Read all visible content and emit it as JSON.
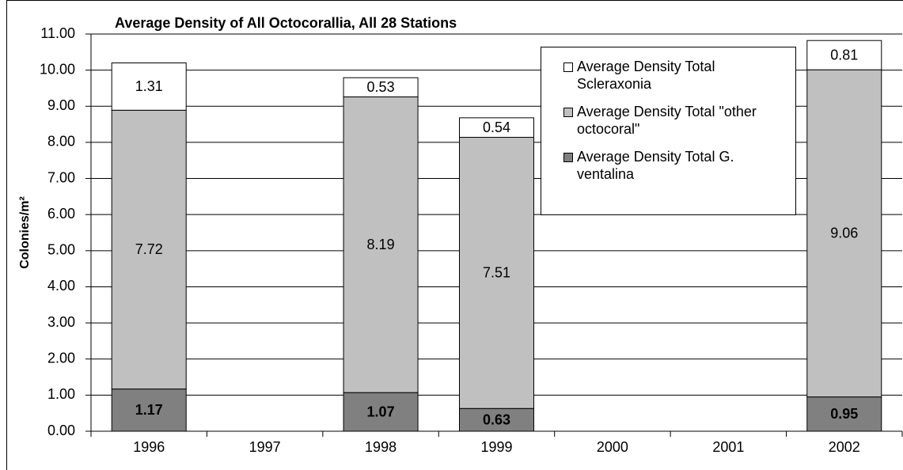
{
  "chart_data": {
    "type": "stacked_bar",
    "title": "Average Density of All Octocorallia, All 28 Stations",
    "y_label": "Colonies/m²",
    "categories": [
      "1996",
      "1997",
      "1998",
      "1999",
      "2000",
      "2001",
      "2002"
    ],
    "series": [
      {
        "name": "Average Density Total G. ventalina",
        "color": "#808080",
        "values": [
          1.17,
          null,
          1.07,
          0.63,
          null,
          null,
          0.95
        ]
      },
      {
        "name": "Average Density Total \"other octocoral\"",
        "color": "#c0c0c0",
        "values": [
          7.72,
          null,
          8.19,
          7.51,
          null,
          null,
          9.06
        ]
      },
      {
        "name": "Average Density Total Scleraxonia",
        "color": "#ffffff",
        "values": [
          1.31,
          null,
          0.53,
          0.54,
          null,
          null,
          0.81
        ]
      }
    ],
    "ylim": [
      0,
      11
    ],
    "yticks": [
      {
        "value": 0,
        "label": "0.00"
      },
      {
        "value": 1,
        "label": "1.00"
      },
      {
        "value": 2,
        "label": "2.00"
      },
      {
        "value": 3,
        "label": "3.00"
      },
      {
        "value": 4,
        "label": "4.00"
      },
      {
        "value": 5,
        "label": "5.00"
      },
      {
        "value": 6,
        "label": "6.00"
      },
      {
        "value": 7,
        "label": "7.00"
      },
      {
        "value": 8,
        "label": "8.00"
      },
      {
        "value": 9,
        "label": "9.00"
      },
      {
        "value": 10,
        "label": "10.00"
      },
      {
        "value": 11,
        "label": "11.00"
      }
    ],
    "grid": true
  }
}
